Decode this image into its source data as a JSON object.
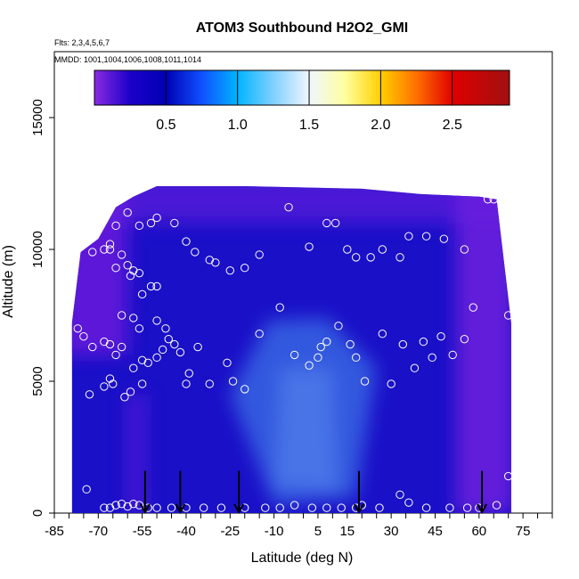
{
  "chart_data": {
    "type": "heatmap",
    "title": "ATOM3 Southbound H2O2_GMI",
    "flights_label": "Flts: 2,3,4,5,6,7",
    "dates_label": "MMDD: 1001,1004,1006,1008,1011,1014",
    "xlabel": "Latitude (deg N)",
    "ylabel": "Altitude (m)",
    "xlim": [
      -85,
      85
    ],
    "ylim": [
      0,
      17500
    ],
    "xticks": [
      -85,
      -70,
      -55,
      -40,
      -25,
      -10,
      5,
      15,
      30,
      45,
      60,
      75
    ],
    "xtick_labels": [
      "-85",
      "-70",
      "-55",
      "-40",
      "-25",
      "-10",
      "5",
      "15",
      "30",
      "45",
      "60",
      "75"
    ],
    "yticks": [
      0,
      5000,
      10000,
      15000
    ],
    "ytick_labels": [
      "0",
      "5000",
      "10000",
      "15000"
    ],
    "colorbar": {
      "range": [
        0,
        2.9
      ],
      "ticks": [
        0.5,
        1.0,
        1.5,
        2.0,
        2.5
      ],
      "tick_labels": [
        "0.5",
        "1.0",
        "1.5",
        "2.0",
        "2.5"
      ],
      "stops": [
        {
          "v": 0.0,
          "c": "#8a2be2"
        },
        {
          "v": 0.25,
          "c": "#1c00c8"
        },
        {
          "v": 0.5,
          "c": "#0000b4"
        },
        {
          "v": 0.75,
          "c": "#1050ff"
        },
        {
          "v": 1.0,
          "c": "#00b4ff"
        },
        {
          "v": 1.25,
          "c": "#80d0ff"
        },
        {
          "v": 1.5,
          "c": "#f0f6ff"
        },
        {
          "v": 1.75,
          "c": "#ffffa0"
        },
        {
          "v": 2.0,
          "c": "#ffd000"
        },
        {
          "v": 2.25,
          "c": "#ff7000"
        },
        {
          "v": 2.5,
          "c": "#e00000"
        },
        {
          "v": 2.9,
          "c": "#a01010"
        }
      ]
    },
    "field_extent": {
      "lat": [
        -79,
        71
      ],
      "alt_top": [
        [
          -79,
          7200
        ],
        [
          -76,
          9900
        ],
        [
          -70,
          10400
        ],
        [
          -64,
          11600
        ],
        [
          -58,
          12000
        ],
        [
          -50,
          12400
        ],
        [
          -20,
          12400
        ],
        [
          20,
          12300
        ],
        [
          40,
          12100
        ],
        [
          60,
          12000
        ],
        [
          66,
          11900
        ],
        [
          71,
          7200
        ]
      ]
    },
    "observations": [
      [
        -77,
        7000
      ],
      [
        -75,
        6700
      ],
      [
        -73,
        4500
      ],
      [
        -80,
        9900
      ],
      [
        -72,
        9900
      ],
      [
        -68,
        10000
      ],
      [
        -66,
        10000
      ],
      [
        -66,
        10200
      ],
      [
        -64,
        9300
      ],
      [
        -62,
        9800
      ],
      [
        -60,
        9400
      ],
      [
        -59,
        9000
      ],
      [
        -58,
        9200
      ],
      [
        -56,
        9100
      ],
      [
        -55,
        8300
      ],
      [
        -52,
        8600
      ],
      [
        -50,
        8600
      ],
      [
        -64,
        10900
      ],
      [
        -60,
        11400
      ],
      [
        -56,
        10900
      ],
      [
        -52,
        11000
      ],
      [
        -50,
        11200
      ],
      [
        -44,
        11000
      ],
      [
        -40,
        10300
      ],
      [
        -37,
        9900
      ],
      [
        -32,
        9600
      ],
      [
        -30,
        9500
      ],
      [
        -25,
        9200
      ],
      [
        -20,
        9300
      ],
      [
        -15,
        9800
      ],
      [
        -5,
        11600
      ],
      [
        2,
        10100
      ],
      [
        8,
        11000
      ],
      [
        11,
        11000
      ],
      [
        15,
        10000
      ],
      [
        18,
        9700
      ],
      [
        23,
        9700
      ],
      [
        27,
        10000
      ],
      [
        33,
        9700
      ],
      [
        36,
        10500
      ],
      [
        42,
        10500
      ],
      [
        48,
        10400
      ],
      [
        55,
        10000
      ],
      [
        63,
        11900
      ],
      [
        65,
        11900
      ],
      [
        68,
        11800
      ],
      [
        -72,
        6300
      ],
      [
        -68,
        6500
      ],
      [
        -66,
        6400
      ],
      [
        -64,
        6000
      ],
      [
        -62,
        6300
      ],
      [
        -58,
        5500
      ],
      [
        -55,
        5800
      ],
      [
        -53,
        5700
      ],
      [
        -50,
        5900
      ],
      [
        -48,
        6200
      ],
      [
        -46,
        6600
      ],
      [
        -44,
        6400
      ],
      [
        -42,
        6100
      ],
      [
        -39,
        5300
      ],
      [
        -36,
        6300
      ],
      [
        -32,
        4900
      ],
      [
        -26,
        5700
      ],
      [
        -24,
        5000
      ],
      [
        -20,
        4700
      ],
      [
        -15,
        6800
      ],
      [
        -8,
        7800
      ],
      [
        -3,
        6000
      ],
      [
        2,
        5600
      ],
      [
        5,
        5900
      ],
      [
        6,
        6300
      ],
      [
        8,
        6500
      ],
      [
        12,
        7100
      ],
      [
        16,
        6400
      ],
      [
        18,
        5900
      ],
      [
        21,
        5000
      ],
      [
        27,
        6800
      ],
      [
        30,
        4900
      ],
      [
        34,
        6400
      ],
      [
        38,
        5500
      ],
      [
        41,
        6500
      ],
      [
        44,
        5900
      ],
      [
        47,
        6700
      ],
      [
        51,
        6000
      ],
      [
        55,
        6600
      ],
      [
        58,
        7800
      ],
      [
        70,
        7500
      ],
      [
        -68,
        4800
      ],
      [
        -66,
        5100
      ],
      [
        -65,
        4900
      ],
      [
        -61,
        4400
      ],
      [
        -59,
        4600
      ],
      [
        -55,
        4900
      ],
      [
        -40,
        4900
      ],
      [
        -62,
        7500
      ],
      [
        -58,
        7400
      ],
      [
        -56,
        7000
      ],
      [
        -50,
        7300
      ],
      [
        -47,
        7000
      ],
      [
        -68,
        200
      ],
      [
        -66,
        200
      ],
      [
        -64,
        300
      ],
      [
        -62,
        350
      ],
      [
        -60,
        250
      ],
      [
        -58,
        350
      ],
      [
        -56,
        300
      ],
      [
        -53,
        200
      ],
      [
        -50,
        200
      ],
      [
        -45,
        200
      ],
      [
        -40,
        200
      ],
      [
        -34,
        200
      ],
      [
        -28,
        200
      ],
      [
        -20,
        200
      ],
      [
        -13,
        200
      ],
      [
        -8,
        200
      ],
      [
        -3,
        300
      ],
      [
        3,
        200
      ],
      [
        8,
        200
      ],
      [
        13,
        200
      ],
      [
        18,
        200
      ],
      [
        20,
        300
      ],
      [
        26,
        200
      ],
      [
        33,
        700
      ],
      [
        36,
        400
      ],
      [
        42,
        200
      ],
      [
        50,
        200
      ],
      [
        56,
        200
      ],
      [
        60,
        200
      ],
      [
        66,
        300
      ],
      [
        70,
        1400
      ],
      [
        -74,
        900
      ]
    ],
    "arrows_lat": [
      -54,
      -42,
      -22,
      19,
      61
    ]
  }
}
